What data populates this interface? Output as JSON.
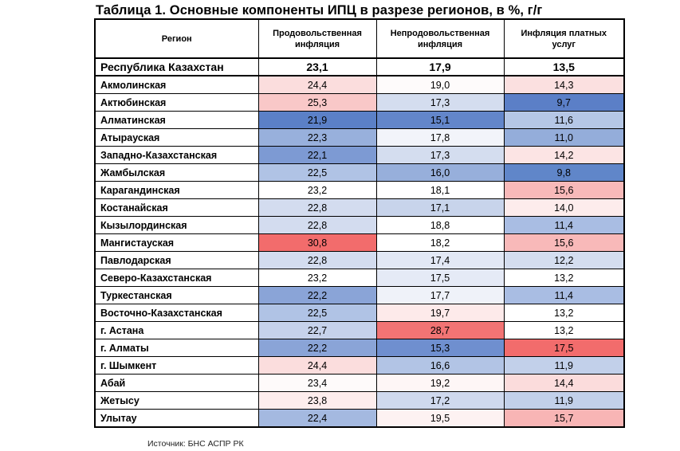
{
  "title": "Таблица 1. Основные компоненты ИПЦ в разрезе регионов, в %, г/г",
  "headers": {
    "region": "Регион",
    "food": "Продовольственная инфляция",
    "nonfood": "Непродовольственная инфляция",
    "services": "Инфляция платных услуг"
  },
  "total": {
    "region": "Республика Казахстан",
    "food": "23,1",
    "nonfood": "17,9",
    "services": "13,5"
  },
  "rows": [
    {
      "region": "Акмолинская",
      "food": "24,4",
      "nonfood": "19,0",
      "services": "14,3",
      "colors": [
        "#fbdddd",
        "#fefbfb",
        "#fbe0e0"
      ]
    },
    {
      "region": "Актюбинская",
      "food": "25,3",
      "nonfood": "17,3",
      "services": "9,7",
      "colors": [
        "#f9c8c8",
        "#d4ddef",
        "#5b7fc7"
      ]
    },
    {
      "region": "Алматинская",
      "food": "21,9",
      "nonfood": "15,1",
      "services": "11,6",
      "colors": [
        "#5b80c7",
        "#6386ca",
        "#b5c7e6"
      ]
    },
    {
      "region": "Атырауская",
      "food": "22,3",
      "nonfood": "17,8",
      "services": "11,0",
      "colors": [
        "#98b0dc",
        "#f2f4fa",
        "#94adda"
      ]
    },
    {
      "region": "Западно-Казахстанская",
      "food": "22,1",
      "nonfood": "17,3",
      "services": "14,2",
      "colors": [
        "#7d9ad3",
        "#d4ddef",
        "#fce4e4"
      ]
    },
    {
      "region": "Жамбылская",
      "food": "22,5",
      "nonfood": "16,0",
      "services": "9,8",
      "colors": [
        "#b0c3e5",
        "#97afdb",
        "#6086c9"
      ]
    },
    {
      "region": "Карагандинская",
      "food": "23,2",
      "nonfood": "18,1",
      "services": "15,6",
      "colors": [
        "#ffffff",
        "#ffffff",
        "#f8b9b9"
      ]
    },
    {
      "region": "Костанайская",
      "food": "22,8",
      "nonfood": "17,1",
      "services": "14,0",
      "colors": [
        "#d3dcef",
        "#c8d4eb",
        "#fdecec"
      ]
    },
    {
      "region": "Кызылординская",
      "food": "22,8",
      "nonfood": "18,8",
      "services": "11,4",
      "colors": [
        "#d3dcef",
        "#ffffff",
        "#a9bde3"
      ]
    },
    {
      "region": "Мангистауская",
      "food": "30,8",
      "nonfood": "18,2",
      "services": "15,6",
      "colors": [
        "#f26c6c",
        "#ffffff",
        "#f8b9b9"
      ]
    },
    {
      "region": "Павлодарская",
      "food": "22,8",
      "nonfood": "17,4",
      "services": "12,2",
      "colors": [
        "#d3dcef",
        "#e2e8f5",
        "#d4ddef"
      ]
    },
    {
      "region": "Северо-Казахстанская",
      "food": "23,2",
      "nonfood": "17,5",
      "services": "13,2",
      "colors": [
        "#ffffff",
        "#e5eaf6",
        "#ffffff"
      ]
    },
    {
      "region": "Туркестанская",
      "food": "22,2",
      "nonfood": "17,7",
      "services": "11,4",
      "colors": [
        "#8aa4d7",
        "#eff2f9",
        "#a9bde3"
      ]
    },
    {
      "region": "Восточно-Казахстанская",
      "food": "22,5",
      "nonfood": "19,7",
      "services": "13,2",
      "colors": [
        "#b0c3e5",
        "#fdeaea",
        "#ffffff"
      ]
    },
    {
      "region": "г. Астана",
      "food": "22,7",
      "nonfood": "28,7",
      "services": "13,2",
      "colors": [
        "#c6d2eb",
        "#f27474",
        "#ffffff"
      ]
    },
    {
      "region": "г. Алматы",
      "food": "22,2",
      "nonfood": "15,3",
      "services": "17,5",
      "colors": [
        "#8aa4d7",
        "#6f8fcf",
        "#f26c6c"
      ]
    },
    {
      "region": "г. Шымкент",
      "food": "24,4",
      "nonfood": "16,6",
      "services": "11,9",
      "colors": [
        "#fbdddd",
        "#b2c4e5",
        "#c2d0ea"
      ]
    },
    {
      "region": "Абай",
      "food": "23,4",
      "nonfood": "19,2",
      "services": "14,4",
      "colors": [
        "#fefafa",
        "#fef6f6",
        "#fbdcdc"
      ]
    },
    {
      "region": "Жетысу",
      "food": "23,8",
      "nonfood": "17,2",
      "services": "11,9",
      "colors": [
        "#fdeded",
        "#cfd9ee",
        "#c2d0ea"
      ]
    },
    {
      "region": "Улытау",
      "food": "22,4",
      "nonfood": "19,5",
      "services": "15,7",
      "colors": [
        "#a4b9e0",
        "#fdf2f2",
        "#f8b5b5"
      ]
    }
  ],
  "source": "Источник: БНС АСПР РК"
}
